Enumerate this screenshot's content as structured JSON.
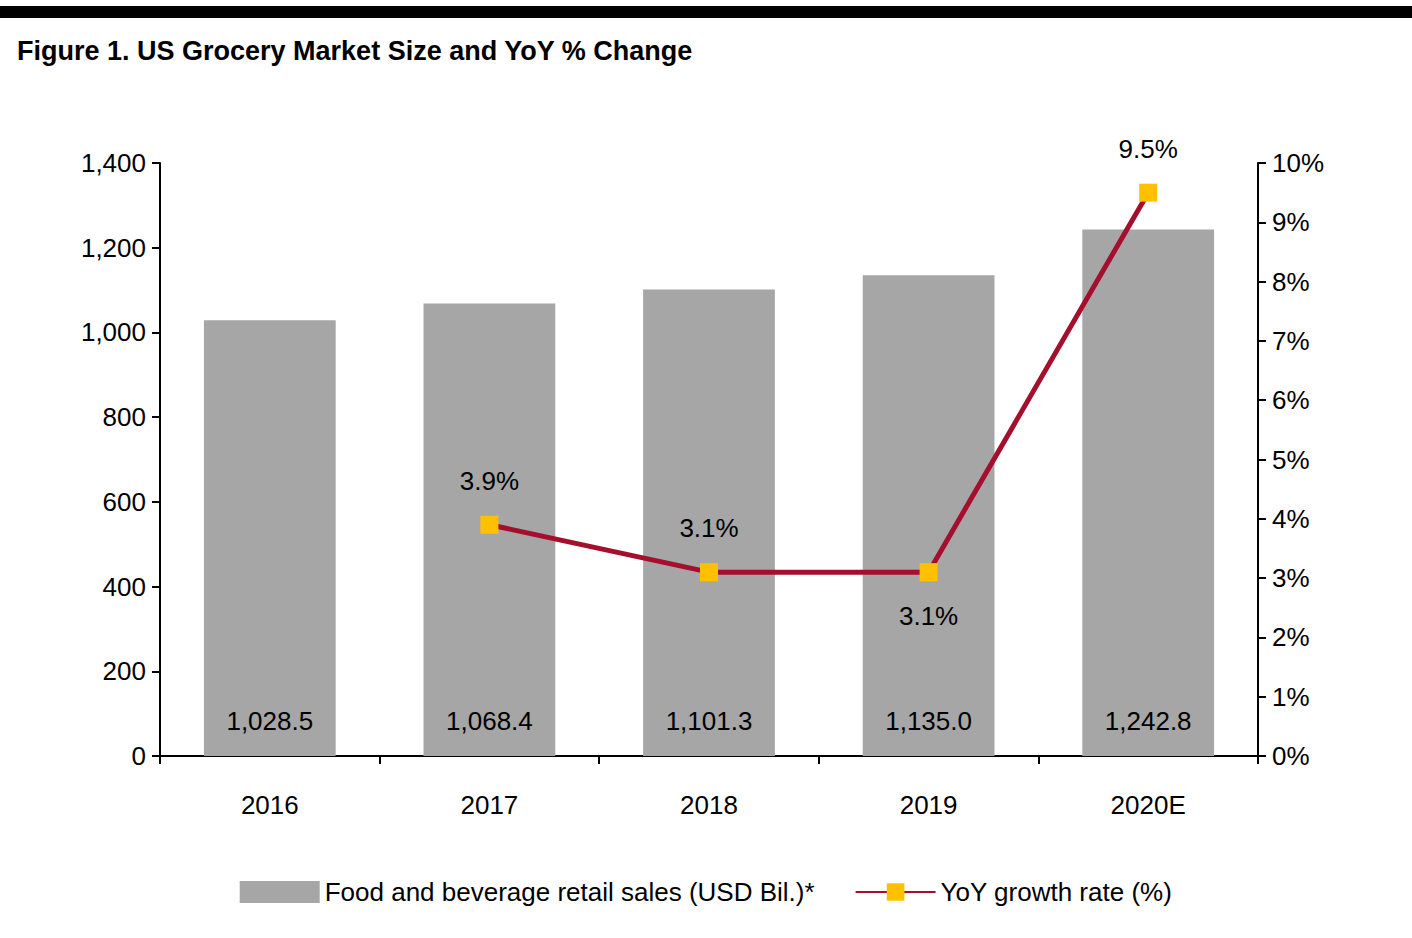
{
  "chart_data": {
    "type": "bar",
    "title": "Figure 1. US Grocery Market Size and YoY % Change",
    "categories": [
      "2016",
      "2017",
      "2018",
      "2019",
      "2020E"
    ],
    "ylim": [
      0,
      1400
    ],
    "yticks": [
      0,
      200,
      400,
      600,
      800,
      {
        "value": 1000,
        "label": "1,000"
      },
      {
        "value": 1200,
        "label": "1,200"
      },
      {
        "value": 1400,
        "label": "1,400"
      }
    ],
    "y2lim": [
      0,
      10
    ],
    "y2ticks": [
      {
        "value": 0,
        "label": "0%"
      },
      {
        "value": 1,
        "label": "1%"
      },
      {
        "value": 2,
        "label": "2%"
      },
      {
        "value": 3,
        "label": "3%"
      },
      {
        "value": 4,
        "label": "4%"
      },
      {
        "value": 5,
        "label": "5%"
      },
      {
        "value": 6,
        "label": "6%"
      },
      {
        "value": 7,
        "label": "7%"
      },
      {
        "value": 8,
        "label": "8%"
      },
      {
        "value": 9,
        "label": "9%"
      },
      {
        "value": 10,
        "label": "10%"
      }
    ],
    "grid": false,
    "legend": "bottom",
    "data_labels": true,
    "series": [
      {
        "name": "Food and beverage retail sales (USD Bil.)*",
        "type": "bar",
        "color": "#a6a6a6",
        "values": [
          1028.5,
          1068.4,
          1101.3,
          1135.0,
          1242.8
        ],
        "value_labels": [
          "1,028.5",
          "1,068.4",
          "1,101.3",
          "1,135.0",
          "1,242.8"
        ]
      },
      {
        "name": "YoY growth rate (%)",
        "type": "line",
        "axis": "y2",
        "color": "#a50f2d",
        "marker": "square",
        "values": [
          null,
          3.9,
          3.1,
          3.1,
          9.5
        ],
        "value_labels": [
          null,
          "3.9%",
          "3.1%",
          "3.1%",
          "9.5%"
        ]
      }
    ]
  }
}
